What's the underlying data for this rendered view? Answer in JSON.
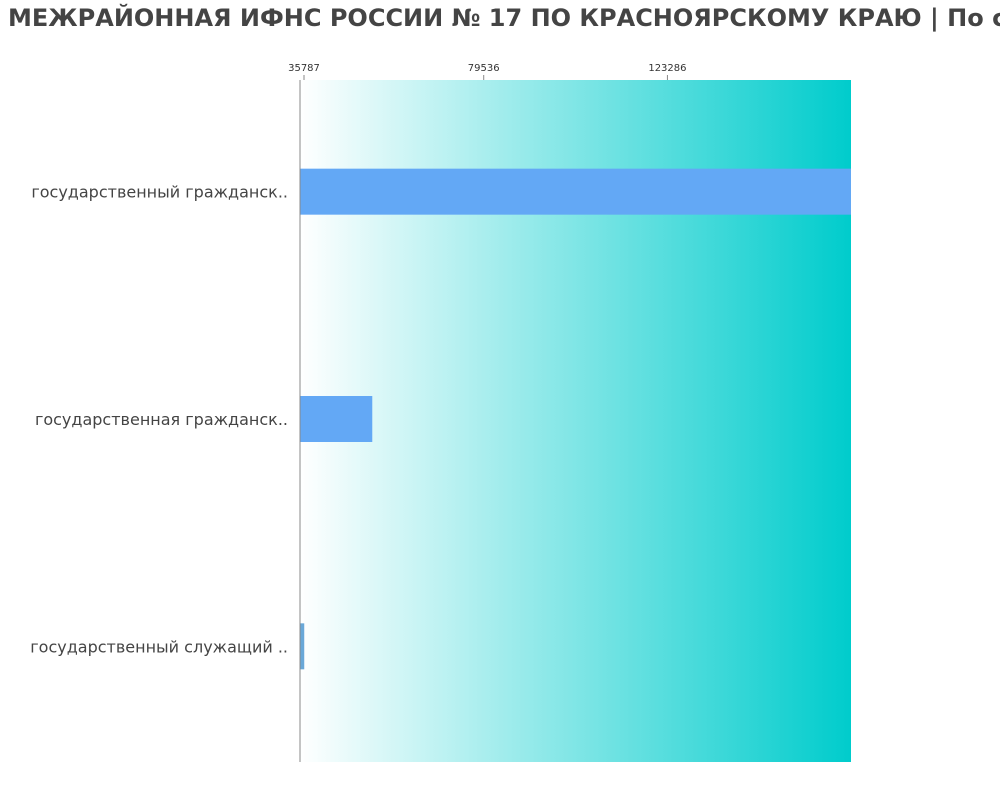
{
  "title": "МЕЖРАЙОННАЯ ИФНС РОССИИ № 17 ПО КРАСНОЯРСКОМУ КРАЮ | По с",
  "colors": {
    "bar": "#63a8f5",
    "bar_small": "#6aa8d8",
    "background_gradient_start": "#ffffff",
    "background_gradient_end": "#00cccc",
    "axis": "#888888",
    "text": "#444444"
  },
  "chart_data": {
    "type": "bar",
    "orientation": "horizontal",
    "categories": [
      "государственный гражданск..",
      "государственная гражданск..",
      "государственный служащий .."
    ],
    "values": [
      167000,
      53000,
      36800
    ],
    "xticks": [
      35787,
      79536,
      123286
    ],
    "xtick_labels": [
      "35787",
      "79536",
      "123286"
    ],
    "xlim": [
      35787,
      167000
    ],
    "xaxis_position": "top",
    "grid": false,
    "legend": "none"
  }
}
